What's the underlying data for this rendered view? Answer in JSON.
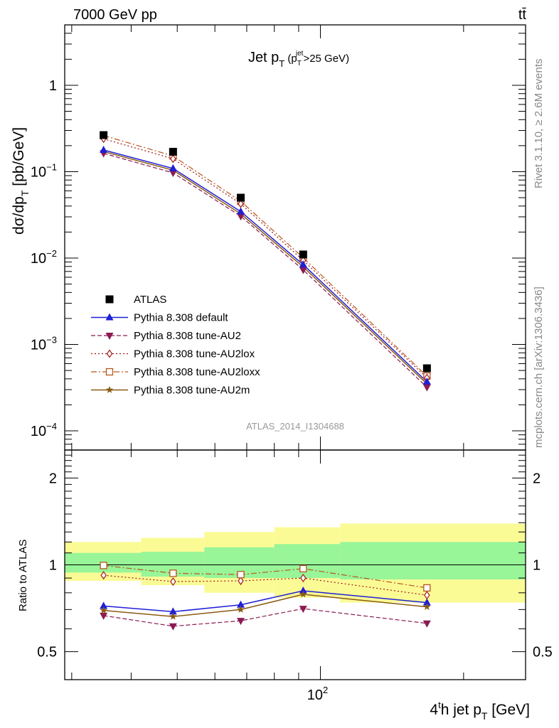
{
  "header": {
    "process_left": "7000 GeV pp",
    "process_right": "tt̄"
  },
  "side_labels": {
    "rivet": "Rivet 3.1.10, ≥ 2.6M events",
    "mcplots": "mcplots.cern.ch [arXiv:1306.3436]"
  },
  "analysis_id": "ATLAS_2014_I1304688",
  "chart_data": [
    {
      "type": "line",
      "panel": "main",
      "title": {
        "main": "Jet p",
        "main_sub": "T",
        "cut_open": " (p",
        "cut_sub": "T",
        "cut_sup": "jet",
        "cut_rest": ">25 GeV)"
      },
      "ylabel": {
        "a": "dσ/dp",
        "a_sub": "T",
        "b": " [pb/GeV]"
      },
      "yscale": "log",
      "ylim": [
        6e-05,
        5
      ],
      "xscale": "log",
      "xlim": [
        29,
        270
      ],
      "yticks": [
        {
          "value": 1,
          "base": "1",
          "exp": ""
        },
        {
          "value": 0.1,
          "base": "10",
          "exp": "−1"
        },
        {
          "value": 0.01,
          "base": "10",
          "exp": "−2"
        },
        {
          "value": 0.001,
          "base": "10",
          "exp": "−3"
        },
        {
          "value": 0.0001,
          "base": "10",
          "exp": "−4"
        }
      ],
      "legend_position": "lower-left",
      "x": [
        35,
        49,
        68,
        92,
        167.5
      ],
      "series": [
        {
          "name": "ATLAS",
          "key": "atlas",
          "color": "#000000",
          "marker": "square-filled",
          "line": "none",
          "values": [
            0.265,
            0.17,
            0.05,
            0.011,
            0.00053
          ]
        },
        {
          "name": "Pythia 8.308 default",
          "key": "default",
          "color": "#1f1fd6",
          "marker": "triangle-up-filled",
          "line": "solid",
          "values": [
            0.178,
            0.109,
            0.0345,
            0.0084,
            0.00037
          ]
        },
        {
          "name": "Pythia 8.308 tune-AU2",
          "key": "au2",
          "color": "#8b1a52",
          "marker": "triangle-down-filled",
          "line": "dashed",
          "values": [
            0.163,
            0.097,
            0.0305,
            0.0073,
            0.00032
          ]
        },
        {
          "name": "Pythia 8.308 tune-AU2lox",
          "key": "au2lox",
          "color": "#a01919",
          "marker": "diamond-open",
          "line": "dotted",
          "values": [
            0.24,
            0.141,
            0.0425,
            0.0094,
            0.00041
          ]
        },
        {
          "name": "Pythia 8.308 tune-AU2loxx",
          "key": "au2loxx",
          "color": "#b8561e",
          "marker": "square-open",
          "line": "dashdot",
          "values": [
            0.262,
            0.152,
            0.0455,
            0.0101,
            0.00043
          ]
        },
        {
          "name": "Pythia 8.308 tune-AU2m",
          "key": "au2m",
          "color": "#8a5a12",
          "marker": "star",
          "line": "solid",
          "values": [
            0.171,
            0.104,
            0.0325,
            0.0079,
            0.00035
          ]
        }
      ]
    },
    {
      "type": "line",
      "panel": "ratio",
      "ylabel": "Ratio to ATLAS",
      "yscale": "log",
      "ylim": [
        0.4,
        2.5
      ],
      "xscale": "log",
      "xlim": [
        29,
        270
      ],
      "xlabel": {
        "a": "4",
        "a_sup": "t",
        "b": "h jet p",
        "b_sub": "T",
        "c": " [GeV]"
      },
      "xticks": [
        {
          "value": 100,
          "base": "10",
          "exp": "2"
        }
      ],
      "yticks": [
        {
          "value": 0.5,
          "label": "0.5"
        },
        {
          "value": 1,
          "label": "1"
        },
        {
          "value": 2,
          "label": "2"
        }
      ],
      "reference_line": 1,
      "bands": {
        "edges": [
          29,
          42,
          57,
          80,
          110,
          270
        ],
        "stat": {
          "color": "#98f598",
          "lo": [
            0.94,
            0.91,
            0.9,
            0.9,
            0.89
          ],
          "hi": [
            1.1,
            1.11,
            1.15,
            1.18,
            1.2
          ]
        },
        "total": {
          "color": "#fbfb96",
          "lo": [
            0.88,
            0.85,
            0.8,
            0.77,
            0.74
          ],
          "hi": [
            1.2,
            1.24,
            1.3,
            1.35,
            1.39
          ]
        }
      },
      "x": [
        35,
        49,
        68,
        92,
        167.5
      ],
      "series": [
        {
          "key": "default",
          "values": [
            0.72,
            0.688,
            0.727,
            0.813,
            0.74
          ]
        },
        {
          "key": "au2",
          "values": [
            0.667,
            0.613,
            0.64,
            0.705,
            0.627
          ]
        },
        {
          "key": "au2lox",
          "values": [
            0.92,
            0.875,
            0.88,
            0.9,
            0.785
          ]
        },
        {
          "key": "au2loxx",
          "values": [
            0.995,
            0.935,
            0.925,
            0.97,
            0.832
          ]
        },
        {
          "key": "au2m",
          "values": [
            0.695,
            0.662,
            0.7,
            0.79,
            0.715
          ]
        }
      ]
    }
  ]
}
